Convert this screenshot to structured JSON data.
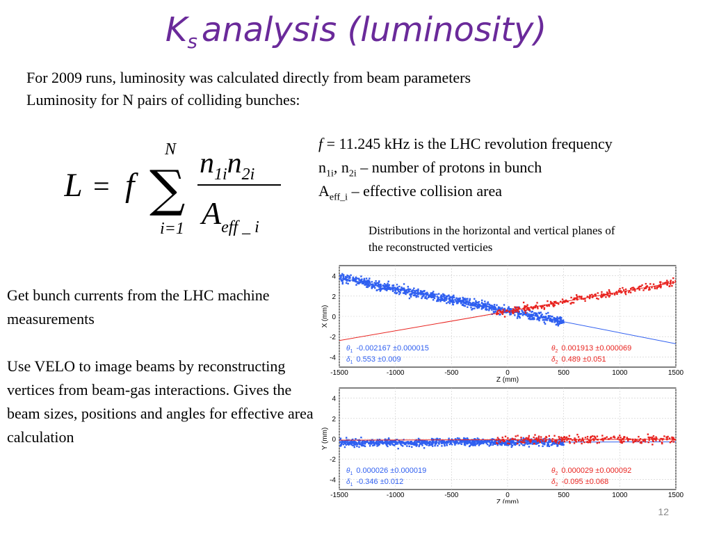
{
  "title": {
    "main": "K",
    "subscript": "s",
    "rest": "analysis (luminosity)"
  },
  "intro": {
    "line1": "For 2009 runs, luminosity was calculated directly from beam parameters",
    "line2": "Luminosity for N pairs of colliding bunches:"
  },
  "formula": {
    "lhs": "L",
    "equals": "=",
    "f": "f",
    "sum_symbol": "∑",
    "upper": "N",
    "lower": "i=1",
    "numerator": "n1in2i",
    "denominator": "Aeff _ i"
  },
  "definitions": {
    "f_symbol": "f",
    "f_text": " = 11.245 kHz is the LHC revolution frequency",
    "n_base1": "n",
    "n_sub1": "1i",
    "n_mid": ", n",
    "n_sub2": "2i",
    "n_text": " – number of protons in bunch",
    "a_base": "A",
    "a_sub": "eff_i",
    "a_text": " – effective collision area"
  },
  "distribution_caption": "Distributions in the horizontal and vertical planes of the reconstructed verticies",
  "left_text": {
    "para1": "Get bunch currents from the LHC machine measurements",
    "para2": "Use VELO to image beams by reconstructing vertices from beam-gas interactions. Gives the beam sizes, positions and angles for effective area calculation"
  },
  "page_number": "12",
  "colors": {
    "title": "#6a2a9a",
    "beam1": "#2f5ff0",
    "beam2": "#e8231f"
  },
  "chart_data": [
    {
      "type": "scatter",
      "xlabel": "Z (mm)",
      "ylabel": "X (mm)",
      "xlim": [
        -1500,
        1500
      ],
      "ylim": [
        -5,
        5
      ],
      "xticks": [
        -1500,
        -1000,
        -500,
        0,
        500,
        1000,
        1500
      ],
      "yticks": [
        -4,
        -2,
        0,
        2,
        4
      ],
      "series": [
        {
          "color": "#2f5ff0",
          "fit_slope_per_mm": -0.002167,
          "fit_intercept": 0.553,
          "z_range": [
            -1500,
            500
          ],
          "spread": 0.45
        },
        {
          "color": "#e8231f",
          "fit_slope_per_mm": 0.001913,
          "fit_intercept": 0.489,
          "z_range": [
            -100,
            1500
          ],
          "spread": 0.35
        }
      ],
      "annotations": {
        "b1_theta_label": "θ",
        "b1_theta_sub": "1",
        "b1_theta_value": "-0.002167 ±0.000015",
        "b1_delta_label": "δ",
        "b1_delta_sub": "1",
        "b1_delta_value": "0.553 ±0.009",
        "b2_theta_label": "θ",
        "b2_theta_sub": "2",
        "b2_theta_value": "0.001913 ±0.000069",
        "b2_delta_label": "δ",
        "b2_delta_sub": "2",
        "b2_delta_value": "0.489 ±0.051"
      }
    },
    {
      "type": "scatter",
      "xlabel": "Z (mm)",
      "ylabel": "Y (mm)",
      "xlim": [
        -1500,
        1500
      ],
      "ylim": [
        -5,
        5
      ],
      "xticks": [
        -1500,
        -1000,
        -500,
        0,
        500,
        1000,
        1500
      ],
      "yticks": [
        -4,
        -2,
        0,
        2,
        4
      ],
      "series": [
        {
          "color": "#2f5ff0",
          "fit_slope_per_mm": 2.6e-05,
          "fit_intercept": -0.346,
          "z_range": [
            -1500,
            500
          ],
          "spread": 0.35
        },
        {
          "color": "#e8231f",
          "fit_slope_per_mm": 2.9e-05,
          "fit_intercept": -0.095,
          "z_range": [
            -100,
            1500
          ],
          "spread": 0.4
        }
      ],
      "annotations": {
        "b1_theta_label": "θ",
        "b1_theta_sub": "1",
        "b1_theta_value": "0.000026 ±0.000019",
        "b1_delta_label": "δ",
        "b1_delta_sub": "1",
        "b1_delta_value": "-0.346 ±0.012",
        "b2_theta_label": "θ",
        "b2_theta_sub": "2",
        "b2_theta_value": "0.000029 ±0.000092",
        "b2_delta_label": "δ",
        "b2_delta_sub": "2",
        "b2_delta_value": "-0.095 ±0.068"
      }
    }
  ]
}
